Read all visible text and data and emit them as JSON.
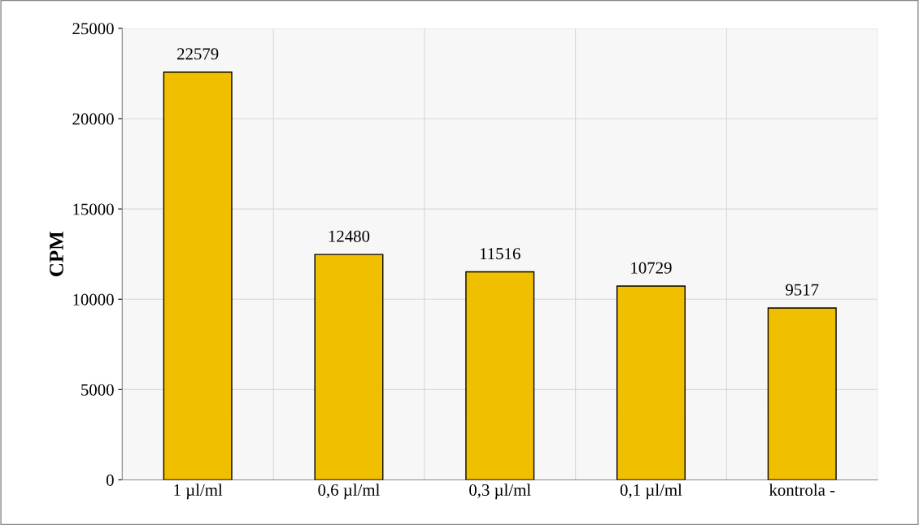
{
  "chart_data": {
    "type": "bar",
    "ylabel": "CPM",
    "categories": [
      "1 µl/ml",
      "0,6 µl/ml",
      "0,3 µl/ml",
      "0,1 µl/ml",
      "kontrola -"
    ],
    "values": [
      22579,
      12480,
      11516,
      10729,
      9517
    ],
    "color": "#f0c000",
    "ylim": [
      0,
      25000
    ],
    "yticks": [
      0,
      5000,
      10000,
      15000,
      20000,
      25000
    ],
    "grid": true,
    "data_labels": true
  }
}
